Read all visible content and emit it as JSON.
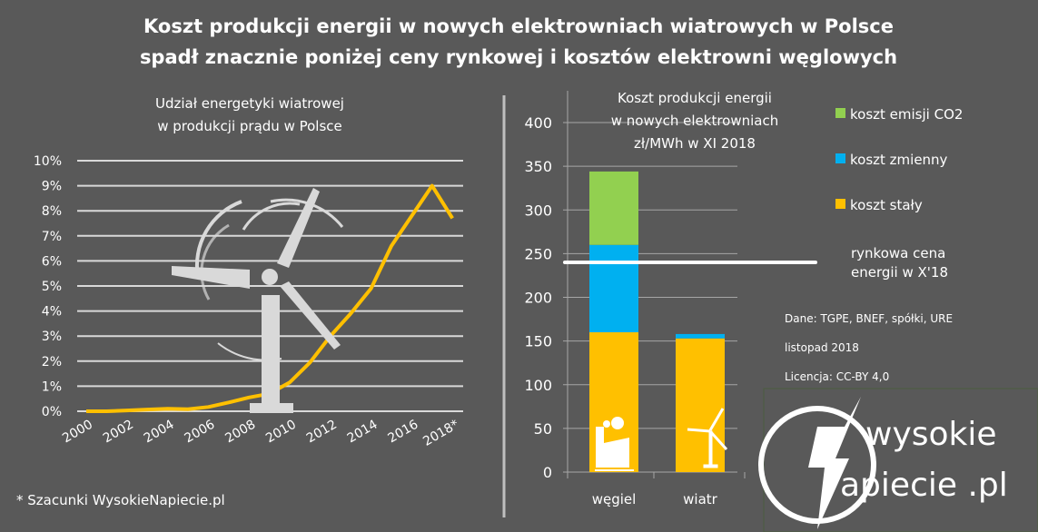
{
  "title": [
    "Koszt produkcji energii w nowych elektrowniach wiatrowych w Polsce",
    "spadł znacznie poniżej ceny rynkowej i kosztów elektrowni węglowych"
  ],
  "footnote": "* Szacunki WysokieNapiecie.pl",
  "source": {
    "data": "Dane: TGPE, BNEF, spółki, URE",
    "date": "listopad 2018",
    "license": "Licencja: CC-BY  4,0"
  },
  "logo": {
    "line1": "wysokie",
    "line2": "apiecie .pl",
    "letter": "N"
  },
  "colors": {
    "background": "#595959",
    "line": "#FFC000",
    "co2": "#92D050",
    "variable": "#00B0F0",
    "fixed": "#FFC000",
    "grid": "#D9D9D9"
  },
  "chart_data": [
    {
      "type": "line",
      "title": [
        "Udział energetyki wiatrowej",
        "w produkcji prądu w Polsce"
      ],
      "x": [
        "2000",
        "2001",
        "2002",
        "2003",
        "2004",
        "2005",
        "2006",
        "2007",
        "2008",
        "2009",
        "2010",
        "2011",
        "2012",
        "2013",
        "2014",
        "2015",
        "2016",
        "2017",
        "2018*"
      ],
      "x_tick_labels": [
        "2000",
        "2002",
        "2004",
        "2006",
        "2008",
        "2010",
        "2012",
        "2014",
        "2016",
        "2018*"
      ],
      "y_tick_labels": [
        "0%",
        "1%",
        "2%",
        "3%",
        "4%",
        "5%",
        "6%",
        "7%",
        "8%",
        "9%",
        "10%"
      ],
      "ylim": [
        0,
        10
      ],
      "unit": "%",
      "grid": true,
      "series": [
        {
          "values": [
            0,
            0,
            0.03,
            0.07,
            0.1,
            0.08,
            0.17,
            0.35,
            0.55,
            0.7,
            1.15,
            1.95,
            3.0,
            3.9,
            4.9,
            6.6,
            7.8,
            9.0,
            7.7
          ]
        }
      ]
    },
    {
      "type": "bar",
      "stacked": true,
      "title": [
        "Koszt produkcji energii",
        "w nowych elektrowniach",
        "zł/MWh w XI 2018"
      ],
      "categories": [
        "węgiel",
        "wiatr"
      ],
      "category_icons": [
        "factory-icon",
        "wind-turbine-icon"
      ],
      "ylim": [
        0,
        400
      ],
      "y_tick_labels": [
        "0",
        "50",
        "100",
        "150",
        "200",
        "250",
        "300",
        "350",
        "400"
      ],
      "grid": true,
      "legend_position": "right",
      "series": [
        {
          "name": "koszt stały",
          "values": [
            160,
            153
          ]
        },
        {
          "name": "koszt zmienny",
          "values": [
            100,
            5
          ]
        },
        {
          "name": "koszt emisji CO2",
          "values": [
            84,
            0
          ]
        }
      ],
      "reference_line": {
        "value": 240,
        "label": [
          "rynkowa cena",
          "energii w X'18"
        ]
      }
    }
  ]
}
